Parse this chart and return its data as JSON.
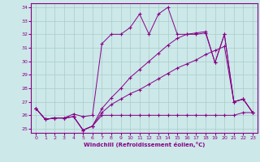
{
  "title": "",
  "xlabel": "Windchill (Refroidissement éolien,°C)",
  "xlim": [
    -0.5,
    23.5
  ],
  "ylim": [
    24.7,
    34.3
  ],
  "yticks": [
    25,
    26,
    27,
    28,
    29,
    30,
    31,
    32,
    33,
    34
  ],
  "xticks": [
    0,
    1,
    2,
    3,
    4,
    5,
    6,
    7,
    8,
    9,
    10,
    11,
    12,
    13,
    14,
    15,
    16,
    17,
    18,
    19,
    20,
    21,
    22,
    23
  ],
  "bg_color": "#cce8e8",
  "line_color": "#880088",
  "grid_color": "#aacccc",
  "lines": [
    {
      "x": [
        0,
        1,
        2,
        3,
        4,
        5,
        6,
        7,
        8,
        9,
        10,
        11,
        12,
        13,
        14,
        15,
        16,
        17,
        18,
        19,
        20,
        21,
        22,
        23
      ],
      "y": [
        26.5,
        25.7,
        25.8,
        25.8,
        25.9,
        24.9,
        25.2,
        26.0,
        26.0,
        26.0,
        26.0,
        26.0,
        26.0,
        26.0,
        26.0,
        26.0,
        26.0,
        26.0,
        26.0,
        26.0,
        26.0,
        26.0,
        26.2,
        26.2
      ]
    },
    {
      "x": [
        0,
        1,
        2,
        3,
        4,
        5,
        6,
        7,
        8,
        9,
        10,
        11,
        12,
        13,
        14,
        15,
        16,
        17,
        18,
        19,
        20,
        21,
        22,
        23
      ],
      "y": [
        26.5,
        25.7,
        25.8,
        25.8,
        25.9,
        24.9,
        25.2,
        26.2,
        26.8,
        27.2,
        27.6,
        27.9,
        28.3,
        28.7,
        29.1,
        29.5,
        29.8,
        30.1,
        30.5,
        30.8,
        31.1,
        27.0,
        27.2,
        26.2
      ]
    },
    {
      "x": [
        0,
        1,
        2,
        3,
        4,
        5,
        6,
        7,
        8,
        9,
        10,
        11,
        12,
        13,
        14,
        15,
        16,
        17,
        18,
        19,
        20,
        21,
        22,
        23
      ],
      "y": [
        26.5,
        25.7,
        25.8,
        25.8,
        25.9,
        24.9,
        25.2,
        26.5,
        27.3,
        28.0,
        28.8,
        29.4,
        30.0,
        30.6,
        31.2,
        31.7,
        32.0,
        32.1,
        32.2,
        29.9,
        32.0,
        27.0,
        27.2,
        26.2
      ]
    },
    {
      "x": [
        0,
        1,
        2,
        3,
        4,
        5,
        6,
        7,
        8,
        9,
        10,
        11,
        12,
        13,
        14,
        15,
        16,
        17,
        18,
        19,
        20,
        21,
        22,
        23
      ],
      "y": [
        26.5,
        25.7,
        25.8,
        25.8,
        26.1,
        25.9,
        26.0,
        31.3,
        32.0,
        32.0,
        32.5,
        33.5,
        32.0,
        33.5,
        34.0,
        32.0,
        32.0,
        32.0,
        32.1,
        29.9,
        32.0,
        27.0,
        27.2,
        26.2
      ]
    }
  ]
}
